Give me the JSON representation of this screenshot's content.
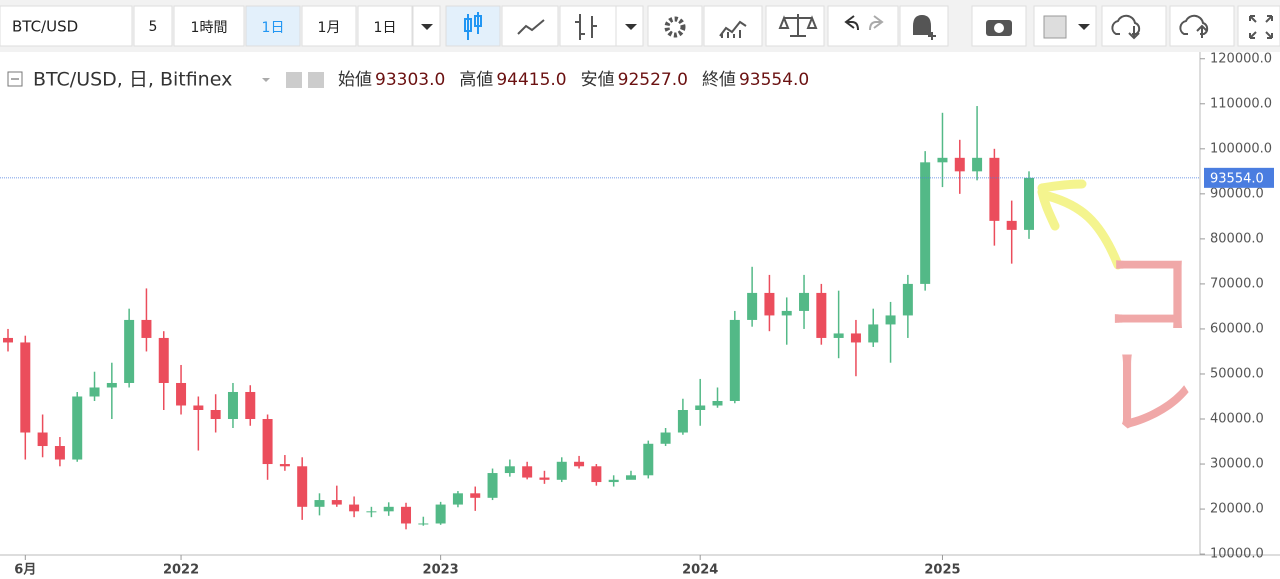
{
  "toolbar": {
    "symbol": "BTC/USD",
    "buttons": [
      "5",
      "1時間",
      "1日",
      "1月",
      "1日"
    ]
  },
  "legend": {
    "title": "BTC/USD, 日, Bitfinex",
    "items": [
      {
        "label": "始値",
        "value": "93303.0"
      },
      {
        "label": "高値",
        "value": "94415.0"
      },
      {
        "label": "安値",
        "value": "92527.0"
      },
      {
        "label": "終値",
        "value": "93554.0"
      }
    ]
  },
  "chart_data": {
    "type": "candlestick",
    "categories": [
      null,
      "6月",
      null,
      null,
      null,
      null,
      null,
      null,
      null,
      null,
      "2022",
      null,
      null,
      null,
      null,
      null,
      null,
      null,
      null,
      null,
      null,
      null,
      null,
      null,
      null,
      "2023",
      null,
      null,
      null,
      null,
      null,
      null,
      null,
      null,
      null,
      null,
      null,
      null,
      null,
      null,
      "2024",
      null,
      null,
      null,
      null,
      null,
      null,
      null,
      null,
      null,
      null,
      null,
      null,
      null,
      "2025",
      null,
      null,
      null,
      null,
      null
    ],
    "open": [
      58000,
      57000,
      37000,
      34000,
      31000,
      45000,
      47000,
      48000,
      62000,
      58000,
      48000,
      43000,
      42000,
      40000,
      46000,
      40000,
      30000,
      29500,
      20500,
      22000,
      21000,
      19500,
      19500,
      20500,
      16800,
      16800,
      21000,
      23500,
      22500,
      28000,
      29500,
      27000,
      26500,
      30500,
      29500,
      26000,
      26500,
      27500,
      34500,
      37000,
      42000,
      43000,
      44000,
      62000,
      68000,
      63000,
      64000,
      68000,
      58000,
      59000,
      57000,
      61000,
      63000,
      70000,
      97000,
      98000,
      95000,
      98000,
      84000,
      82000
    ],
    "high": [
      60000,
      58500,
      41000,
      36000,
      46000,
      50500,
      52500,
      64500,
      69000,
      59500,
      52000,
      45000,
      45500,
      48000,
      47500,
      41000,
      32000,
      31500,
      23500,
      25200,
      22800,
      20500,
      21500,
      21400,
      18300,
      21600,
      24000,
      25000,
      29000,
      31000,
      30500,
      28500,
      31500,
      31800,
      30000,
      27500,
      28500,
      35200,
      38000,
      44500,
      48900,
      47000,
      64000,
      73800,
      72000,
      67000,
      72000,
      70000,
      68500,
      62000,
      64500,
      66000,
      72000,
      99500,
      108000,
      102000,
      109500,
      100000,
      88500,
      95000
    ],
    "low": [
      55000,
      31000,
      31500,
      29500,
      30500,
      44000,
      40000,
      47000,
      55000,
      42000,
      41000,
      33000,
      37000,
      38000,
      38500,
      26500,
      28500,
      17600,
      18600,
      20500,
      18200,
      18200,
      18500,
      15500,
      16300,
      16500,
      20400,
      19600,
      22000,
      27200,
      26600,
      25600,
      26000,
      29000,
      25200,
      25000,
      26600,
      26800,
      34000,
      36500,
      38500,
      42500,
      43500,
      60500,
      59500,
      56500,
      60000,
      56500,
      53500,
      49500,
      56000,
      52500,
      58000,
      68500,
      91500,
      90000,
      93000,
      78500,
      74500,
      80000
    ],
    "close": [
      57000,
      37000,
      34000,
      31000,
      45000,
      47000,
      48000,
      62000,
      58000,
      48000,
      43000,
      42000,
      40000,
      46000,
      40000,
      30000,
      29500,
      20500,
      22000,
      21000,
      19500,
      19500,
      20500,
      16800,
      16800,
      21000,
      23500,
      22500,
      28000,
      29500,
      27000,
      26500,
      30500,
      29500,
      26000,
      26500,
      27500,
      34500,
      37000,
      42000,
      43000,
      44000,
      62000,
      68000,
      63000,
      64000,
      68000,
      58000,
      59000,
      57000,
      61000,
      63000,
      70000,
      97000,
      98000,
      95000,
      98000,
      84000,
      82000,
      93554
    ],
    "up_color": "#53b987",
    "down_color": "#eb4d5c",
    "ylim": [
      9800,
      121500
    ],
    "yticks": [
      {
        "value": 10000,
        "label": "10000.0"
      },
      {
        "value": 20000,
        "label": "20000.0"
      },
      {
        "value": 30000,
        "label": "30000.0"
      },
      {
        "value": 40000,
        "label": "40000.0"
      },
      {
        "value": 50000,
        "label": "50000.0"
      },
      {
        "value": 60000,
        "label": "60000.0"
      },
      {
        "value": 70000,
        "label": "70000.0"
      },
      {
        "value": 80000,
        "label": "80000.0"
      },
      {
        "value": 90000,
        "label": "90000.0"
      },
      {
        "value": 100000,
        "label": "100000.0"
      },
      {
        "value": 110000,
        "label": "110000.0"
      },
      {
        "value": 120000,
        "label": "120000.0"
      }
    ],
    "last_price": {
      "value": 93554,
      "label": "93554.0"
    },
    "annotation": "コレ"
  }
}
